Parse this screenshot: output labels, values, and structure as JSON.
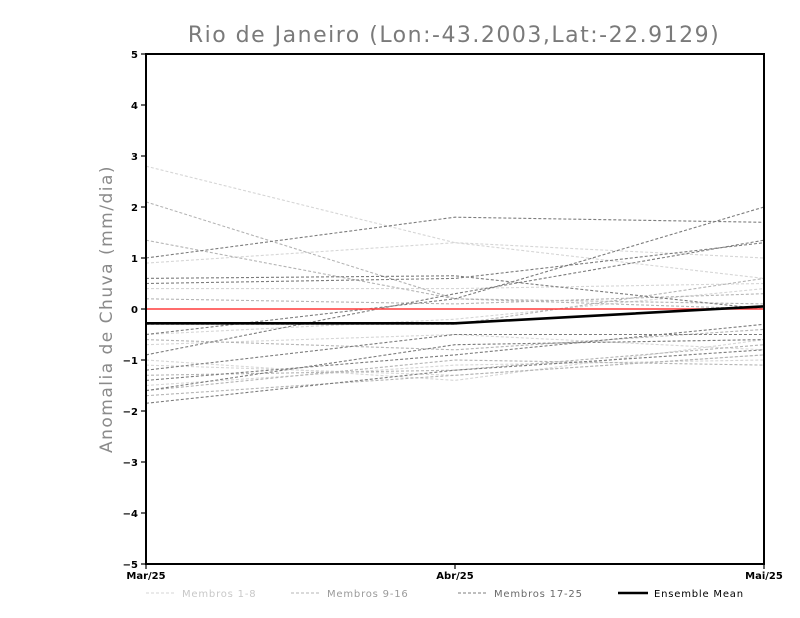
{
  "chart_data": {
    "type": "line",
    "title": "Rio de Janeiro (Lon:-43.2003,Lat:-22.9129)",
    "xlabel": "",
    "ylabel": "Anomalia de Chuva (mm/dia)",
    "categories": [
      "Mar/25",
      "Abr/25",
      "Mai/25"
    ],
    "ylim": [
      -5,
      5
    ],
    "yticks": [
      5,
      4,
      3,
      2,
      1,
      0,
      -1,
      -2,
      -3,
      -4,
      -5
    ],
    "grid": false,
    "legend_placement": "bottom",
    "zero_line_color": "#ff3b3b",
    "series": [
      {
        "group": 0,
        "values": [
          2.8,
          1.3,
          0.6
        ]
      },
      {
        "group": 0,
        "values": [
          0.9,
          1.3,
          1.0
        ]
      },
      {
        "group": 0,
        "values": [
          0.4,
          0.4,
          0.5
        ]
      },
      {
        "group": 0,
        "values": [
          -0.5,
          -0.2,
          0.4
        ]
      },
      {
        "group": 0,
        "values": [
          -0.7,
          -0.5,
          -0.8
        ]
      },
      {
        "group": 0,
        "values": [
          -1.0,
          -1.4,
          -0.6
        ]
      },
      {
        "group": 0,
        "values": [
          -1.1,
          -1.3,
          -0.9
        ]
      },
      {
        "group": 0,
        "values": [
          -1.5,
          -1.1,
          -1.0
        ]
      },
      {
        "group": 1,
        "values": [
          2.1,
          0.2,
          0.0
        ]
      },
      {
        "group": 1,
        "values": [
          1.35,
          0.2,
          0.1
        ]
      },
      {
        "group": 1,
        "values": [
          0.2,
          0.1,
          0.3
        ]
      },
      {
        "group": 1,
        "values": [
          -0.3,
          -0.3,
          0.6
        ]
      },
      {
        "group": 1,
        "values": [
          -0.6,
          -0.8,
          -0.4
        ]
      },
      {
        "group": 1,
        "values": [
          -1.3,
          -1.2,
          -0.7
        ]
      },
      {
        "group": 1,
        "values": [
          -1.6,
          -1.0,
          -1.1
        ]
      },
      {
        "group": 1,
        "values": [
          -1.7,
          -1.3,
          -0.9
        ]
      },
      {
        "group": 2,
        "values": [
          1.0,
          1.8,
          1.7
        ]
      },
      {
        "group": 2,
        "values": [
          0.6,
          0.65,
          0.0
        ]
      },
      {
        "group": 2,
        "values": [
          0.5,
          0.6,
          1.3
        ]
      },
      {
        "group": 2,
        "values": [
          -0.5,
          0.2,
          2.0
        ]
      },
      {
        "group": 2,
        "values": [
          -0.9,
          0.3,
          1.35
        ]
      },
      {
        "group": 2,
        "values": [
          -1.2,
          -0.5,
          -0.5
        ]
      },
      {
        "group": 2,
        "values": [
          -1.4,
          -0.9,
          -0.3
        ]
      },
      {
        "group": 2,
        "values": [
          -1.6,
          -0.7,
          -0.6
        ]
      },
      {
        "group": 2,
        "values": [
          -1.85,
          -1.2,
          -0.8
        ]
      }
    ],
    "ensemble_mean": {
      "name": "Ensemble Mean",
      "values": [
        -0.28,
        -0.28,
        0.05
      ],
      "color": "#000000"
    },
    "legend": [
      {
        "label": "Membros 1-8",
        "color": "#d6d6d6",
        "style": "dashed"
      },
      {
        "label": "Membros 9-16",
        "color": "#b4b4b4",
        "style": "dashed"
      },
      {
        "label": "Membros 17-25",
        "color": "#7c7c7c",
        "style": "dashed"
      },
      {
        "label": "Ensemble Mean",
        "color": "#000000",
        "style": "solid"
      }
    ],
    "group_colors": [
      "#d6d6d6",
      "#b4b4b4",
      "#7c7c7c"
    ]
  }
}
